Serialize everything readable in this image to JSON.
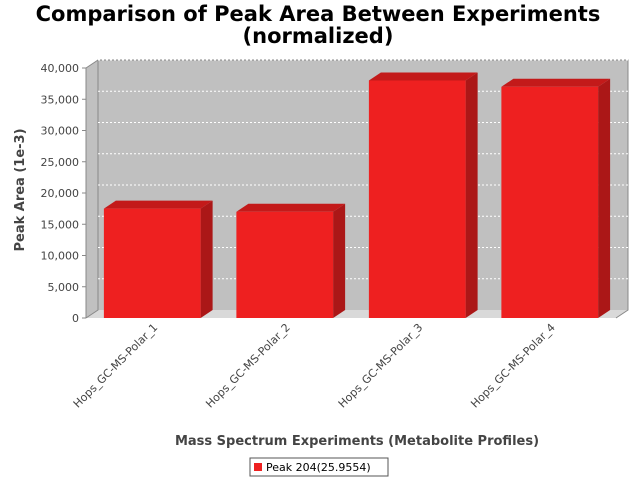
{
  "chart_data": {
    "type": "bar",
    "title": "Comparison of Peak Area Between Experiments",
    "subtitle": "(normalized)",
    "xlabel": "Mass Spectrum Experiments (Metabolite Profiles)",
    "ylabel": "Peak Area (1e-3)",
    "categories": [
      "Hops_GC-MS-Polar_1",
      "Hops_GC-MS-Polar_2",
      "Hops_GC-MS-Polar_3",
      "Hops_GC-MS-Polar_4"
    ],
    "series": [
      {
        "name": "Peak 204(25.9554)",
        "values": [
          17500,
          17000,
          38000,
          37000
        ],
        "color": "#ee2020"
      }
    ],
    "ylim": [
      0,
      40000
    ],
    "yticks": [
      0,
      5000,
      10000,
      15000,
      20000,
      25000,
      30000,
      35000,
      40000
    ],
    "ytick_labels": [
      "0",
      "5,000",
      "10,000",
      "15,000",
      "20,000",
      "25,000",
      "30,000",
      "35,000",
      "40,000"
    ],
    "grid": true,
    "legend_position": "bottom",
    "plot_background": "#c0c0c0"
  }
}
